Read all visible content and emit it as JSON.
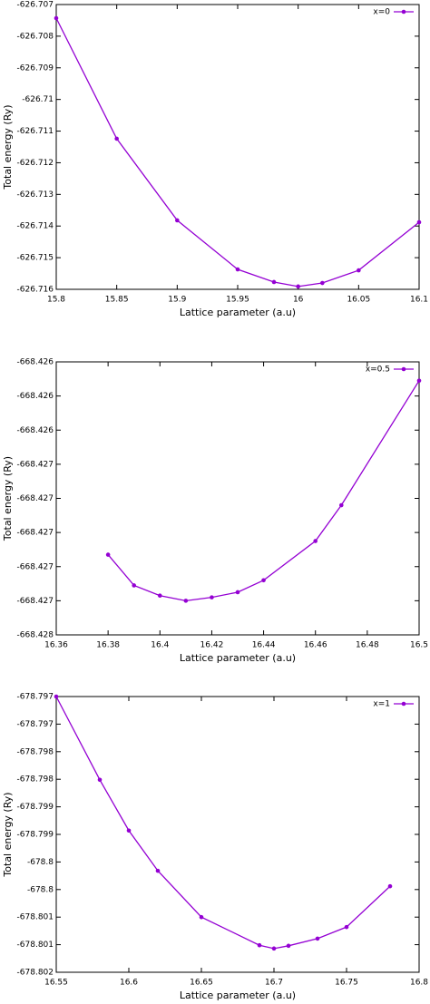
{
  "chart_data": [
    {
      "type": "line",
      "xlabel": "Lattice parameter (a.u)",
      "ylabel": "Total energy (Ry)",
      "x": [
        15.8,
        15.85,
        15.9,
        15.95,
        15.98,
        16.0,
        16.02,
        16.05,
        16.1
      ],
      "series": [
        {
          "name": "x=0",
          "color": "#9400d3",
          "values": [
            -626.70743,
            -626.71124,
            -626.71382,
            -626.71537,
            -626.71577,
            -626.71591,
            -626.7158,
            -626.7154,
            -626.71388
          ]
        }
      ],
      "xlim": [
        15.8,
        16.1
      ],
      "xticks": [
        15.8,
        15.85,
        15.9,
        15.95,
        16,
        16.05,
        16.1
      ],
      "ylim": [
        -626.716,
        -626.707
      ],
      "yticks": [
        -626.707,
        -626.708,
        -626.709,
        -626.71,
        -626.711,
        -626.712,
        -626.713,
        -626.714,
        -626.715,
        -626.716
      ],
      "legend": "top right"
    },
    {
      "type": "line",
      "xlabel": "Lattice parameter (a.u)",
      "ylabel": "Total energy (Ry)",
      "x": [
        16.38,
        16.39,
        16.4,
        16.41,
        16.42,
        16.43,
        16.44,
        16.46,
        16.47,
        16.5
      ],
      "series": [
        {
          "name": "x=0.5",
          "color": "#9400d3",
          "values": [
            -668.42713,
            -668.42731,
            -668.42737,
            -668.4274,
            -668.42738,
            -668.42735,
            -668.42728,
            -668.42705,
            -668.42684,
            -668.42611
          ]
        }
      ],
      "xlim": [
        16.36,
        16.5
      ],
      "xticks": [
        16.36,
        16.38,
        16.4,
        16.42,
        16.44,
        16.46,
        16.48,
        16.5
      ],
      "ylim": [
        -668.4276,
        -668.426
      ],
      "yticks": [
        {
          "value": -668.426,
          "label": "-668.426"
        },
        {
          "value": -668.4262,
          "label": "-668.426"
        },
        {
          "value": -668.4264,
          "label": "-668.426"
        },
        {
          "value": -668.4266,
          "label": "-668.427"
        },
        {
          "value": -668.4268,
          "label": "-668.427"
        },
        {
          "value": -668.427,
          "label": "-668.427"
        },
        {
          "value": -668.4272,
          "label": "-668.427"
        },
        {
          "value": -668.4274,
          "label": "-668.427"
        },
        {
          "value": -668.4276,
          "label": "-668.428"
        }
      ],
      "legend": "top right"
    },
    {
      "type": "line",
      "xlabel": "Lattice parameter (a.u)",
      "ylabel": "Total energy (Ry)",
      "x": [
        16.55,
        16.58,
        16.6,
        16.62,
        16.65,
        16.69,
        16.7,
        16.71,
        16.73,
        16.75,
        16.78
      ],
      "series": [
        {
          "name": "x=1",
          "color": "#9400d3",
          "values": [
            -678.797,
            -678.79851,
            -678.79943,
            -678.80016,
            -678.801,
            -678.80151,
            -678.80157,
            -678.80152,
            -678.80139,
            -678.80118,
            -678.80044
          ]
        }
      ],
      "xlim": [
        16.55,
        16.8
      ],
      "xticks": [
        16.55,
        16.6,
        16.65,
        16.7,
        16.75,
        16.8
      ],
      "ylim": [
        -678.802,
        -678.797
      ],
      "yticks": [
        {
          "value": -678.797,
          "label": "-678.797"
        },
        {
          "value": -678.7975,
          "label": "-678.797"
        },
        {
          "value": -678.798,
          "label": "-678.798"
        },
        {
          "value": -678.7985,
          "label": "-678.798"
        },
        {
          "value": -678.799,
          "label": "-678.799"
        },
        {
          "value": -678.7995,
          "label": "-678.799"
        },
        {
          "value": -678.8,
          "label": "-678.8"
        },
        {
          "value": -678.8005,
          "label": "-678.8"
        },
        {
          "value": -678.801,
          "label": "-678.801"
        },
        {
          "value": -678.8015,
          "label": "-678.801"
        },
        {
          "value": -678.802,
          "label": "-678.802"
        }
      ],
      "legend": "top right"
    }
  ]
}
